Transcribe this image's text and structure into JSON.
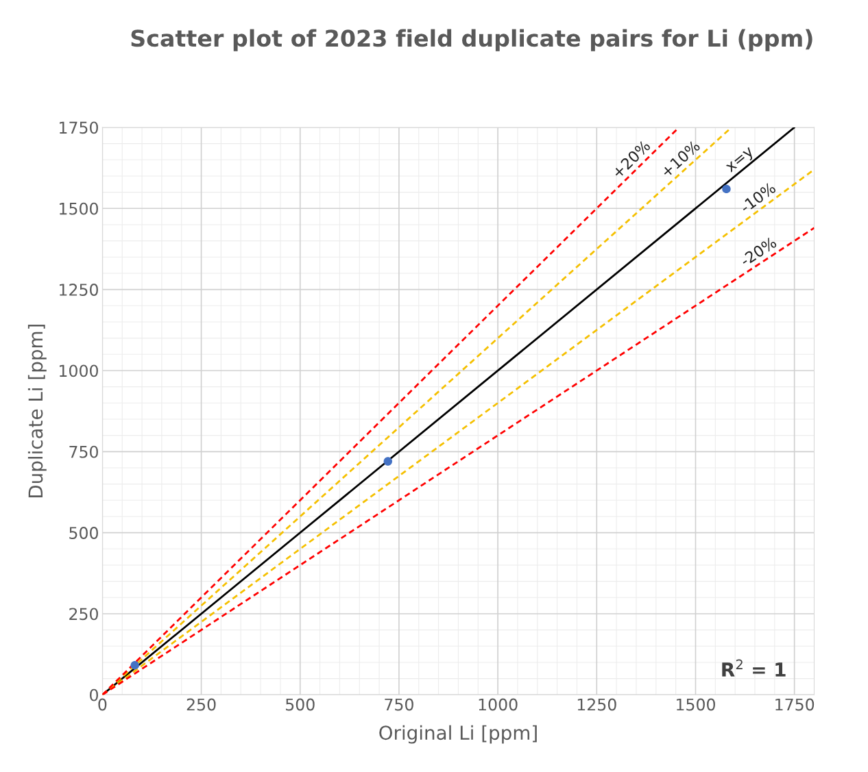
{
  "chart_data": {
    "type": "scatter",
    "title": "Scatter plot of 2023 field duplicate pairs for Li (ppm)",
    "xlabel": "Original Li [ppm]",
    "ylabel": "Duplicate Li [ppm]",
    "xlim": [
      0,
      1800
    ],
    "ylim": [
      0,
      1750
    ],
    "xticks": [
      0,
      250,
      500,
      750,
      1000,
      1250,
      1500,
      1750
    ],
    "yticks": [
      0,
      250,
      500,
      750,
      1000,
      1250,
      1500,
      1750
    ],
    "grid": true,
    "marker": "circle",
    "series": [
      {
        "color": "#4472c4",
        "x": [
          82,
          722,
          1578
        ],
        "values": [
          91,
          720,
          1560
        ]
      },
      {
        "type": "line",
        "name": "x=y",
        "color": "#000000",
        "line_style": "solid",
        "marker": "none",
        "x": [
          0,
          1750
        ],
        "values": [
          0,
          1750
        ]
      },
      {
        "type": "line",
        "name": "+10%",
        "color": "#f5c000",
        "line_style": "dashed",
        "marker": "none",
        "x": [
          0,
          1591
        ],
        "values": [
          0,
          1750
        ]
      },
      {
        "type": "line",
        "name": "-10%",
        "color": "#f5c000",
        "line_style": "dashed",
        "marker": "none",
        "x": [
          0,
          1800
        ],
        "values": [
          0,
          1620
        ]
      },
      {
        "type": "line",
        "name": "+20%",
        "color": "#ff0000",
        "line_style": "dashed",
        "marker": "none",
        "x": [
          0,
          1458
        ],
        "values": [
          0,
          1750
        ]
      },
      {
        "type": "line",
        "name": "-20%",
        "color": "#ff0000",
        "line_style": "dashed",
        "marker": "none",
        "x": [
          0,
          1800
        ],
        "values": [
          0,
          1440
        ]
      }
    ],
    "annotations": [
      "R$^{2}$ = 1"
    ]
  }
}
